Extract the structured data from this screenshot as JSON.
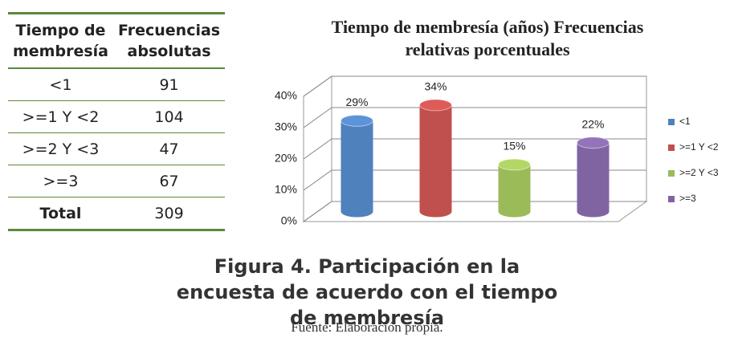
{
  "table": {
    "header": [
      "Tiempo de membresía",
      "Frecuencias absolutas"
    ],
    "rows": [
      [
        "<1",
        91
      ],
      [
        ">=1 Y <2",
        104
      ],
      [
        ">=2 Y <3",
        47
      ],
      [
        ">=3",
        67
      ],
      [
        "Total",
        309
      ]
    ]
  },
  "chart_data": {
    "type": "bar",
    "title": "Tiempo de membresía (años) Frecuencias relativas porcentuales",
    "categories": [
      "<1",
      ">=1 Y <2",
      ">=2 Y <3",
      ">=3"
    ],
    "values": [
      29,
      34,
      15,
      22
    ],
    "value_labels": [
      "29%",
      "34%",
      "15%",
      "22%"
    ],
    "colors": [
      "#4f81bd",
      "#c0504d",
      "#9bbb59",
      "#8064a2"
    ],
    "ylim": [
      0,
      40
    ],
    "yticks": [
      {
        "value": 0,
        "label": "0%"
      },
      {
        "value": 10,
        "label": "10%"
      },
      {
        "value": 20,
        "label": "20%"
      },
      {
        "value": 30,
        "label": "30%"
      },
      {
        "value": 40,
        "label": "40%"
      }
    ],
    "grid": true,
    "legend": "right"
  },
  "caption": {
    "title": "Figura 4. Participación en la encuesta de acuerdo con el tiempo de membresía",
    "source": "Fuente: Elaboración propia."
  }
}
